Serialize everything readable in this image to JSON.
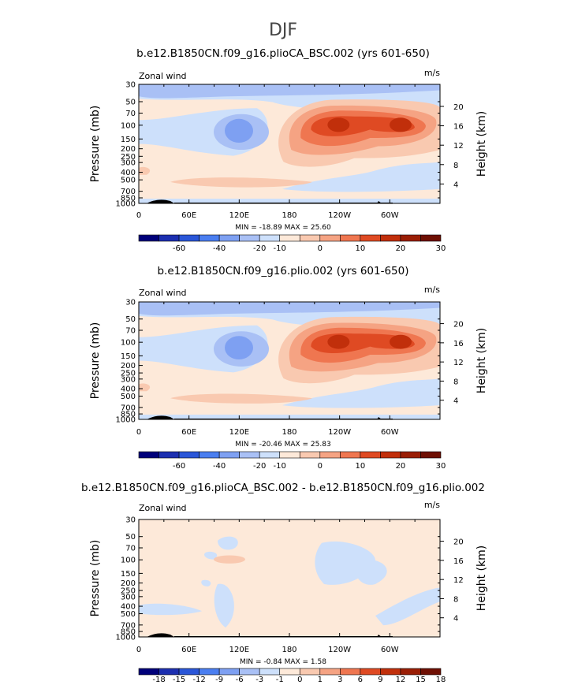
{
  "figure": {
    "title": "DJF"
  },
  "palettes": {
    "wind": [
      "#00007a",
      "#1c2fb0",
      "#2a56d8",
      "#4a7ef0",
      "#7ea0f2",
      "#a9c0f5",
      "#cde0fb",
      "#fde9d9",
      "#f9c9b0",
      "#f5a383",
      "#ef7650",
      "#df4a23",
      "#c12f0b",
      "#9a1e05",
      "#6e0f03"
    ],
    "diff": [
      "#00007a",
      "#1c2fb0",
      "#2a56d8",
      "#4a7ef0",
      "#7ea0f2",
      "#a9c0f5",
      "#cde0fb",
      "#fde9d9",
      "#f9c9b0",
      "#f5a383",
      "#ef7650",
      "#df4a23",
      "#c12f0b",
      "#9a1e05",
      "#6e0f03"
    ]
  },
  "chart_data": [
    {
      "type": "heatmap",
      "title": "b.e12.B1850CN.f09_g16.plioCA_BSC.002 (yrs 601-650)",
      "left_label": "Zonal wind",
      "right_label": "m/s",
      "ylabel": "Pressure (mb)",
      "ylabel_right": "Height (km)",
      "x_ticks": [
        "0",
        "60E",
        "120E",
        "180",
        "120W",
        "60W"
      ],
      "x_tick_lon": [
        0,
        60,
        120,
        180,
        240,
        300
      ],
      "y_ticks": [
        "30",
        "50",
        "70",
        "100",
        "150",
        "200",
        "250",
        "300",
        "400",
        "500",
        "700",
        "850",
        "1000"
      ],
      "y_tick_p": [
        30,
        50,
        70,
        100,
        150,
        200,
        250,
        300,
        400,
        500,
        700,
        850,
        1000
      ],
      "right_ticks": [
        "20",
        "16",
        "12",
        "8",
        "4"
      ],
      "right_tick_km": [
        20,
        16,
        12,
        8,
        4
      ],
      "min_max": "MIN = -18.89   MAX =  25.60",
      "colorbar_labels": [
        "-60",
        "-40",
        "-20",
        "-10",
        "0",
        "10",
        "20",
        "30"
      ],
      "colorbar_label_edges": [
        2,
        4,
        6,
        7,
        9,
        11,
        13,
        15
      ],
      "ylim": [
        1000,
        30
      ],
      "xlim": [
        0,
        360
      ]
    },
    {
      "type": "heatmap",
      "title": "b.e12.B1850CN.f09_g16.plio.002 (yrs 601-650)",
      "left_label": "Zonal wind",
      "right_label": "m/s",
      "ylabel": "Pressure (mb)",
      "ylabel_right": "Height (km)",
      "x_ticks": [
        "0",
        "60E",
        "120E",
        "180",
        "120W",
        "60W"
      ],
      "x_tick_lon": [
        0,
        60,
        120,
        180,
        240,
        300
      ],
      "y_ticks": [
        "30",
        "50",
        "70",
        "100",
        "150",
        "200",
        "250",
        "300",
        "400",
        "500",
        "700",
        "850",
        "1000"
      ],
      "y_tick_p": [
        30,
        50,
        70,
        100,
        150,
        200,
        250,
        300,
        400,
        500,
        700,
        850,
        1000
      ],
      "right_ticks": [
        "20",
        "16",
        "12",
        "8",
        "4"
      ],
      "right_tick_km": [
        20,
        16,
        12,
        8,
        4
      ],
      "min_max": "MIN = -20.46   MAX =  25.83",
      "colorbar_labels": [
        "-60",
        "-40",
        "-20",
        "-10",
        "0",
        "10",
        "20",
        "30"
      ],
      "colorbar_label_edges": [
        2,
        4,
        6,
        7,
        9,
        11,
        13,
        15
      ],
      "ylim": [
        1000,
        30
      ],
      "xlim": [
        0,
        360
      ]
    },
    {
      "type": "heatmap",
      "title": "b.e12.B1850CN.f09_g16.plioCA_BSC.002 - b.e12.B1850CN.f09_g16.plio.002",
      "left_label": "Zonal wind",
      "right_label": "m/s",
      "ylabel": "Pressure (mb)",
      "ylabel_right": "Height (km)",
      "x_ticks": [
        "0",
        "60E",
        "120E",
        "180",
        "120W",
        "60W"
      ],
      "x_tick_lon": [
        0,
        60,
        120,
        180,
        240,
        300
      ],
      "y_ticks": [
        "30",
        "50",
        "70",
        "100",
        "150",
        "200",
        "250",
        "300",
        "400",
        "500",
        "700",
        "850",
        "1000"
      ],
      "y_tick_p": [
        30,
        50,
        70,
        100,
        150,
        200,
        250,
        300,
        400,
        500,
        700,
        850,
        1000
      ],
      "right_ticks": [
        "20",
        "16",
        "12",
        "8",
        "4"
      ],
      "right_tick_km": [
        20,
        16,
        12,
        8,
        4
      ],
      "min_max": "MIN =  -0.84   MAX =   1.58",
      "colorbar_labels": [
        "-18",
        "-15",
        "-12",
        "-9",
        "-6",
        "-3",
        "-1",
        "0",
        "1",
        "3",
        "6",
        "9",
        "12",
        "15",
        "18"
      ],
      "colorbar_label_edges": [
        1,
        2,
        3,
        4,
        5,
        6,
        7,
        8,
        9,
        10,
        11,
        12,
        13,
        14,
        15
      ],
      "ylim": [
        1000,
        30
      ],
      "xlim": [
        0,
        360
      ]
    }
  ]
}
